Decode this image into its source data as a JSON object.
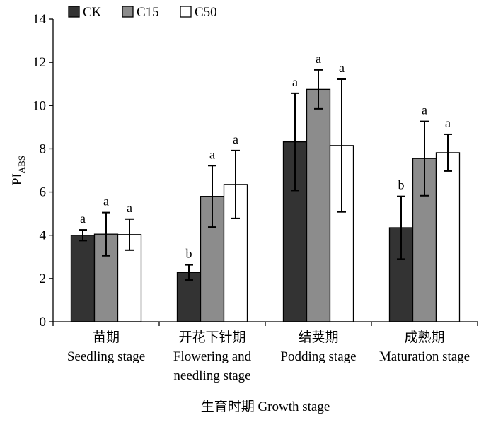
{
  "chart_data": {
    "type": "bar",
    "xlabel": "生育时期 Growth stage",
    "ylabel": {
      "main": "PI",
      "sub": "ABS"
    },
    "ylim": [
      0,
      14
    ],
    "yticks": [
      "0",
      "2",
      "4",
      "6",
      "8",
      "10",
      "12",
      "14"
    ],
    "ytick_values": [
      0,
      2,
      4,
      6,
      8,
      10,
      12,
      14
    ],
    "grid": false,
    "legend_position": "top-left",
    "categories": [
      {
        "zh": "苗期",
        "en": [
          "Seedling stage"
        ]
      },
      {
        "zh": "开花下针期",
        "en": [
          "Flowering and",
          "needling stage"
        ]
      },
      {
        "zh": "结荚期",
        "en": [
          "Podding stage"
        ]
      },
      {
        "zh": "成熟期",
        "en": [
          "Maturation stage"
        ]
      }
    ],
    "series": [
      {
        "name": "CK",
        "color": "#333333",
        "values": [
          4.0,
          2.28,
          8.32,
          4.35
        ],
        "errors": [
          0.25,
          0.35,
          2.25,
          1.45
        ],
        "letters": [
          "a",
          "b",
          "a",
          "b"
        ]
      },
      {
        "name": "C15",
        "color": "#8c8c8c",
        "values": [
          4.05,
          5.8,
          10.75,
          7.55
        ],
        "errors": [
          1.0,
          1.42,
          0.9,
          1.72
        ],
        "letters": [
          "a",
          "a",
          "a",
          "a"
        ]
      },
      {
        "name": "C50",
        "color": "#ffffff",
        "values": [
          4.03,
          6.35,
          8.15,
          7.82
        ],
        "errors": [
          0.72,
          1.57,
          3.07,
          0.85
        ],
        "letters": [
          "a",
          "a",
          "a",
          "a"
        ]
      }
    ]
  }
}
